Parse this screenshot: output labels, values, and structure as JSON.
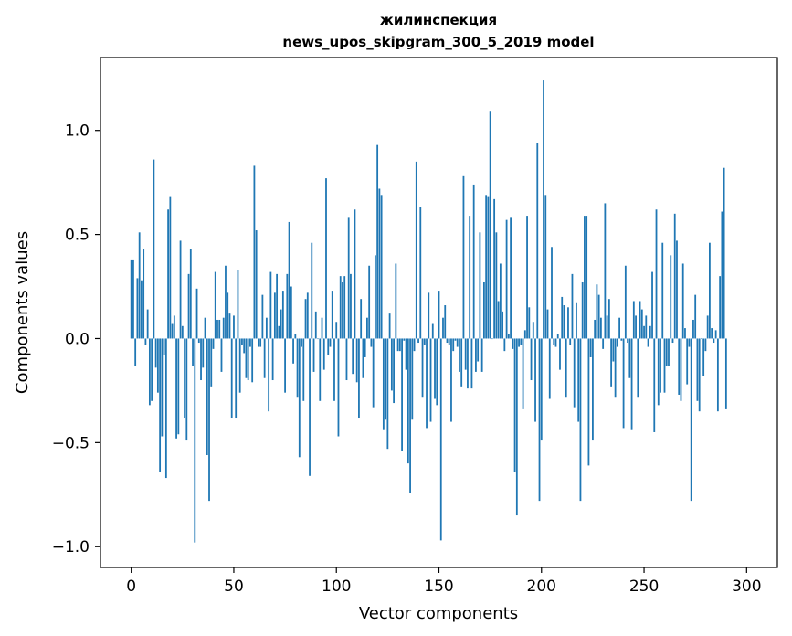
{
  "chart_data": {
    "type": "bar",
    "title": "жилинспекция",
    "subtitle": "news_upos_skipgram_300_5_2019 model",
    "xlabel": "Vector components",
    "ylabel": "Components values",
    "xlim": [
      -15,
      315
    ],
    "ylim": [
      -1.1,
      1.35
    ],
    "xticks": [
      0,
      50,
      100,
      150,
      200,
      250,
      300
    ],
    "xtick_labels": [
      "0",
      "50",
      "100",
      "150",
      "200",
      "250",
      "300"
    ],
    "yticks": [
      -1.0,
      -0.5,
      0.0,
      0.5,
      1.0
    ],
    "ytick_labels": [
      "−1.0",
      "−0.5",
      "0.0",
      "0.5",
      "1.0"
    ],
    "bar_color": "#1f77b4",
    "values": [
      0.38,
      0.38,
      -0.13,
      0.29,
      0.51,
      0.28,
      0.43,
      -0.03,
      0.14,
      -0.32,
      -0.3,
      0.86,
      -0.14,
      -0.26,
      -0.64,
      -0.47,
      -0.08,
      -0.67,
      0.62,
      0.68,
      0.07,
      0.11,
      -0.48,
      -0.46,
      0.47,
      0.06,
      -0.38,
      -0.49,
      0.31,
      0.43,
      -0.13,
      -0.98,
      0.24,
      -0.02,
      -0.2,
      -0.14,
      0.1,
      -0.56,
      -0.78,
      -0.23,
      -0.05,
      0.32,
      0.09,
      0.09,
      -0.16,
      0.1,
      0.35,
      0.22,
      0.12,
      -0.38,
      0.11,
      -0.38,
      0.33,
      -0.26,
      -0.03,
      -0.07,
      -0.19,
      -0.2,
      -0.04,
      -0.21,
      0.83,
      0.52,
      -0.04,
      -0.04,
      0.21,
      -0.19,
      0.1,
      -0.35,
      0.32,
      -0.2,
      0.22,
      0.31,
      0.06,
      0.14,
      0.23,
      -0.26,
      0.31,
      0.56,
      0.25,
      -0.12,
      0.02,
      -0.28,
      -0.57,
      -0.04,
      -0.3,
      0.19,
      0.22,
      -0.66,
      0.46,
      -0.16,
      0.13,
      0.0,
      -0.3,
      0.1,
      -0.15,
      0.77,
      -0.08,
      -0.04,
      0.23,
      -0.3,
      0.08,
      -0.47,
      0.3,
      0.27,
      0.3,
      -0.2,
      0.58,
      0.31,
      -0.17,
      0.62,
      -0.21,
      -0.38,
      0.19,
      -0.19,
      -0.09,
      0.1,
      0.35,
      -0.04,
      -0.33,
      0.4,
      0.93,
      0.72,
      0.69,
      -0.44,
      -0.39,
      -0.53,
      0.12,
      -0.25,
      -0.31,
      0.36,
      -0.06,
      -0.06,
      -0.54,
      -0.01,
      -0.15,
      -0.6,
      -0.74,
      -0.39,
      -0.06,
      0.85,
      -0.02,
      0.63,
      -0.28,
      -0.03,
      -0.43,
      0.22,
      -0.4,
      0.07,
      -0.29,
      -0.32,
      0.23,
      -0.97,
      0.1,
      0.16,
      -0.02,
      -0.03,
      -0.4,
      -0.06,
      -0.01,
      -0.04,
      -0.16,
      -0.23,
      0.78,
      -0.15,
      -0.24,
      0.59,
      -0.24,
      0.74,
      -0.16,
      -0.11,
      0.51,
      -0.16,
      0.27,
      0.69,
      0.68,
      1.09,
      0.0,
      0.67,
      0.51,
      0.18,
      0.36,
      0.13,
      -0.06,
      0.57,
      0.02,
      0.58,
      -0.05,
      -0.64,
      -0.85,
      -0.04,
      -0.03,
      -0.34,
      0.04,
      0.59,
      0.15,
      -0.2,
      0.08,
      -0.4,
      0.94,
      -0.78,
      -0.49,
      1.24,
      0.69,
      0.14,
      -0.29,
      0.44,
      -0.03,
      -0.04,
      0.02,
      -0.15,
      0.2,
      0.16,
      -0.28,
      0.15,
      -0.03,
      0.31,
      -0.33,
      0.17,
      -0.4,
      -0.78,
      0.27,
      0.59,
      0.59,
      -0.61,
      -0.09,
      -0.49,
      0.09,
      0.26,
      0.21,
      0.1,
      -0.05,
      0.65,
      0.11,
      0.19,
      -0.23,
      -0.11,
      -0.28,
      -0.04,
      0.1,
      -0.01,
      -0.43,
      0.35,
      -0.02,
      -0.19,
      -0.44,
      0.18,
      0.11,
      -0.28,
      0.18,
      0.14,
      0.06,
      0.11,
      -0.04,
      0.06,
      0.32,
      -0.45,
      0.62,
      -0.32,
      -0.26,
      0.46,
      -0.26,
      -0.13,
      -0.13,
      0.4,
      -0.02,
      0.6,
      0.47,
      -0.27,
      -0.3,
      0.36,
      0.05,
      -0.22,
      -0.04,
      -0.78,
      0.09,
      0.21,
      -0.3,
      -0.35,
      0.0,
      -0.18,
      -0.06,
      0.11,
      0.46,
      0.05,
      -0.02,
      0.04,
      -0.35,
      0.3,
      0.61,
      0.82,
      -0.34
    ]
  }
}
